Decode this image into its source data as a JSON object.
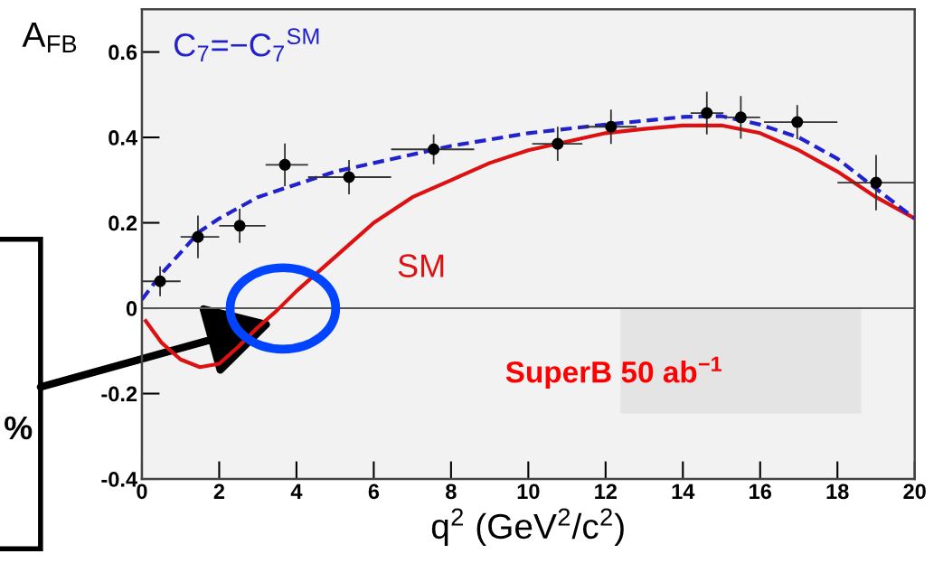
{
  "chart_data": {
    "type": "scatter",
    "xlabel": "q$^{2}$ (GeV$^{2}$/c$^{2}$)",
    "ylabel": "A$_{FB}$",
    "xlim": [
      0,
      20
    ],
    "xticks": [
      0,
      2,
      4,
      6,
      8,
      10,
      12,
      14,
      16,
      18,
      20
    ],
    "ylim": [
      -0.4,
      0.7
    ],
    "yticks": [
      -0.4,
      -0.2,
      0,
      0.2,
      0.4,
      0.6
    ],
    "grid": false,
    "ref_lines": [
      {
        "axis": "y",
        "value": 0,
        "color": "#555555"
      }
    ],
    "annotations": [
      "SuperB 50 ab$^{−1}$",
      "%"
    ],
    "series": [
      {
        "name": "SM",
        "type": "line",
        "color": "#dd1111",
        "line_style": "solid",
        "x": [
          0.1,
          0.5,
          1,
          1.5,
          2,
          2.5,
          3,
          3.5,
          4,
          5,
          6,
          7,
          8,
          9,
          10,
          11,
          12,
          13,
          14,
          15,
          16,
          17,
          18,
          19,
          20
        ],
        "values": [
          -0.03,
          -0.08,
          -0.12,
          -0.138,
          -0.13,
          -0.09,
          -0.045,
          -0.005,
          0.04,
          0.12,
          0.2,
          0.26,
          0.3,
          0.34,
          0.37,
          0.39,
          0.41,
          0.42,
          0.428,
          0.428,
          0.41,
          0.37,
          0.32,
          0.26,
          0.21
        ]
      },
      {
        "name": "C$_{7}$=−C$_{7}$$^{SM}$",
        "type": "line",
        "color": "#2222cc",
        "line_style": "dashed",
        "x": [
          0,
          0.5,
          1,
          1.5,
          2,
          3,
          4,
          5,
          6,
          8,
          10,
          12,
          14,
          15,
          16,
          17,
          18,
          19,
          20
        ],
        "values": [
          0.02,
          0.08,
          0.13,
          0.18,
          0.21,
          0.26,
          0.29,
          0.32,
          0.34,
          0.38,
          0.41,
          0.43,
          0.448,
          0.45,
          0.43,
          0.4,
          0.35,
          0.28,
          0.21
        ]
      },
      {
        "color": "#000000",
        "marker": "circle",
        "x": [
          0.47,
          1.45,
          2.53,
          3.7,
          5.36,
          7.55,
          10.76,
          12.14,
          14.62,
          15.5,
          16.96,
          19.0
        ],
        "values": [
          0.063,
          0.167,
          0.193,
          0.336,
          0.307,
          0.372,
          0.385,
          0.425,
          0.457,
          0.447,
          0.436,
          0.294
        ],
        "errors": [
          0.035,
          0.05,
          0.04,
          0.05,
          0.04,
          0.035,
          0.04,
          0.04,
          0.05,
          0.05,
          0.04,
          0.065
        ],
        "xerrors": [
          [
            0,
            1
          ],
          [
            1,
            2
          ],
          [
            2,
            3.2
          ],
          [
            3.2,
            4.3
          ],
          [
            4.3,
            6.45
          ],
          [
            6.45,
            8.6
          ],
          [
            10.1,
            11.4
          ],
          [
            11.45,
            12.8
          ],
          [
            14.2,
            15.05
          ],
          [
            15.1,
            16.0
          ],
          [
            16.1,
            18.0
          ],
          [
            18.0,
            20
          ]
        ]
      }
    ]
  }
}
